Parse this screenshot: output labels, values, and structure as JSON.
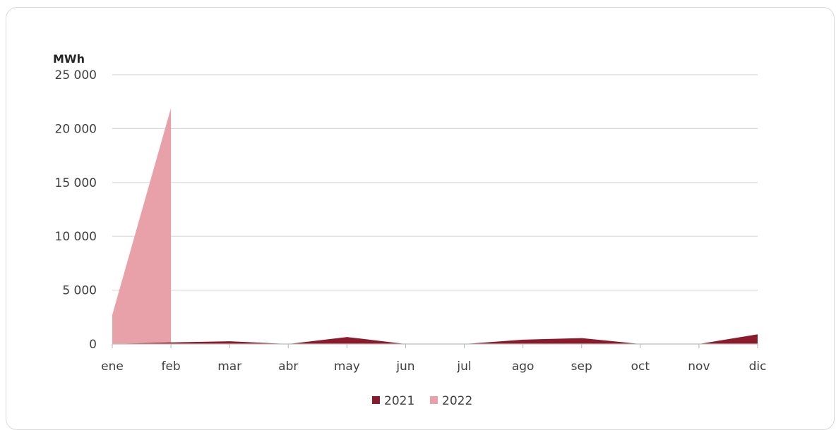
{
  "chart_data": {
    "type": "area",
    "ylabel": "MWh",
    "categories": [
      "ene",
      "feb",
      "mar",
      "abr",
      "may",
      "jun",
      "jul",
      "ago",
      "sep",
      "oct",
      "nov",
      "dic"
    ],
    "y_ticks": [
      "0",
      "5 000",
      "10 000",
      "15 000",
      "20 000",
      "25 000"
    ],
    "ylim": [
      0,
      25000
    ],
    "grid": true,
    "legend_position": "bottom",
    "series": [
      {
        "name": "2021",
        "color": "#8b1a2b",
        "values": [
          0,
          150,
          250,
          0,
          650,
          0,
          0,
          400,
          550,
          0,
          0,
          900
        ]
      },
      {
        "name": "2022",
        "color": "#e8a1a9",
        "values": [
          2700,
          21900,
          null,
          null,
          null,
          null,
          null,
          null,
          null,
          null,
          null,
          null
        ]
      }
    ]
  }
}
